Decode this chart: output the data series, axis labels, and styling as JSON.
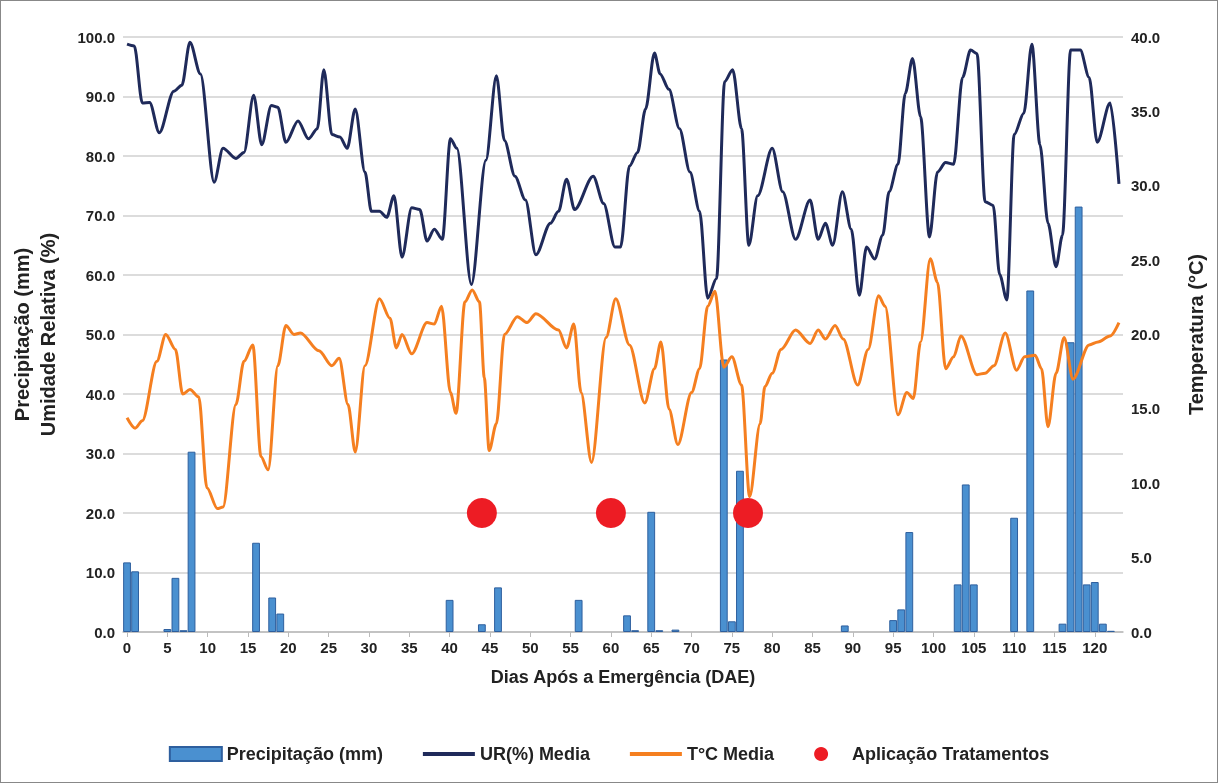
{
  "chart_data": {
    "type": "bar",
    "xlabel": "Dias Após a Emergência (DAE)",
    "ylabel": "Precipitação (mm)\nUmidade Relativa (%)",
    "y2label": "Temperatura (°C)",
    "xlim": [
      -0.5,
      123.5
    ],
    "xticks": [
      0,
      5,
      10,
      15,
      20,
      25,
      30,
      35,
      40,
      45,
      50,
      55,
      60,
      65,
      70,
      75,
      80,
      85,
      90,
      95,
      100,
      105,
      110,
      115,
      120
    ],
    "ylim": [
      0,
      100
    ],
    "yticks": [
      {
        "value": 0,
        "label": "0.0"
      },
      {
        "value": 10,
        "label": "10.0"
      },
      {
        "value": 20,
        "label": "20.0"
      },
      {
        "value": 30,
        "label": "30.0"
      },
      {
        "value": 40,
        "label": "40.0"
      },
      {
        "value": 50,
        "label": "50.0"
      },
      {
        "value": 60,
        "label": "60.0"
      },
      {
        "value": 70,
        "label": "70.0"
      },
      {
        "value": 80,
        "label": "80.0"
      },
      {
        "value": 90,
        "label": "90.0"
      },
      {
        "value": 100,
        "label": "100.0"
      }
    ],
    "y2lim": [
      0,
      40
    ],
    "y2ticks": [
      {
        "value": 0,
        "label": "0.0"
      },
      {
        "value": 5,
        "label": "5.0"
      },
      {
        "value": 10,
        "label": "10.0"
      },
      {
        "value": 15,
        "label": "15.0"
      },
      {
        "value": 20,
        "label": "20.0"
      },
      {
        "value": 25,
        "label": "25.0"
      },
      {
        "value": 30,
        "label": "30.0"
      },
      {
        "value": 35,
        "label": "35.0"
      },
      {
        "value": 40,
        "label": "40.0"
      }
    ],
    "grid": "y",
    "legend": "bottom",
    "marker": "none",
    "series": [
      {
        "name": "Precipitação (mm)",
        "color": "#4a90d0",
        "x": [
          0,
          1,
          5,
          6,
          7,
          8,
          16,
          18,
          19,
          40,
          44,
          46,
          56,
          62,
          63,
          65,
          66,
          68,
          74,
          75,
          76,
          89,
          95,
          96,
          97,
          103,
          104,
          105,
          110,
          112,
          116,
          117,
          118,
          119,
          120,
          121,
          122
        ],
        "values": [
          11.7,
          10.2,
          0.5,
          9.1,
          0.3,
          30.3,
          15.0,
          5.8,
          3.1,
          5.4,
          1.3,
          7.5,
          5.4,
          2.8,
          0.3,
          20.2,
          0.3,
          0.4,
          45.8,
          1.8,
          27.1,
          1.1,
          2.0,
          3.8,
          16.8,
          8.0,
          24.8,
          8.0,
          19.2,
          57.4,
          1.4,
          48.7,
          71.5,
          8.0,
          8.4,
          1.4,
          0.2
        ]
      },
      {
        "name": "UR(%) Media",
        "type": "line",
        "color": "#1f2a5a",
        "x": [
          0,
          0.9,
          1.9,
          2.8,
          4.0,
          5.8,
          6.8,
          7.8,
          9.1,
          10.8,
          11.9,
          13.5,
          14.5,
          15.7,
          16.7,
          17.9,
          18.7,
          19.7,
          21.2,
          22.5,
          23.6,
          24.4,
          25.4,
          26.4,
          27.3,
          28.3,
          29.5,
          30.3,
          31.3,
          32.2,
          33.1,
          34.1,
          35.3,
          36.3,
          37.2,
          38.1,
          39.1,
          40.1,
          40.9,
          42.7,
          44.5,
          45.8,
          46.8,
          48.1,
          49.4,
          50.7,
          52.5,
          53.5,
          54.5,
          55.5,
          57.8,
          59.1,
          60.5,
          61.2,
          62.3,
          63.3,
          64.3,
          65.4,
          66.1,
          67.2,
          68.5,
          69.8,
          71.0,
          72.0,
          73.1,
          74.1,
          75.1,
          76.2,
          77.1,
          78.2,
          80.0,
          81.3,
          82.9,
          84.7,
          85.7,
          86.6,
          87.5,
          88.7,
          89.8,
          90.8,
          91.7,
          92.7,
          93.7,
          94.5,
          95.6,
          96.5,
          97.4,
          98.4,
          99.5,
          100.5,
          101.5,
          102.5,
          103.6,
          104.6,
          105.4,
          106.4,
          107.4,
          108.2,
          109.1,
          110.0,
          111.2,
          112.2,
          113.2,
          114.2,
          115.2,
          116.0,
          117.0,
          118.2,
          119.3,
          120.3,
          121.9,
          123.0
        ],
        "values": [
          98.8,
          98.5,
          88.9,
          89,
          83.9,
          90.9,
          91.9,
          99.1,
          93.8,
          75.6,
          81.3,
          79.6,
          80.6,
          90.2,
          81.9,
          88.5,
          88.2,
          82.3,
          85.9,
          82.9,
          84.6,
          94.5,
          83.6,
          83.2,
          81.3,
          87.9,
          77.3,
          70.7,
          70.7,
          69.7,
          73.3,
          63,
          71.3,
          71,
          65.7,
          67.7,
          66,
          82.9,
          81.3,
          58.4,
          79.3,
          93.5,
          82.6,
          76.6,
          72.6,
          63.4,
          68.7,
          70.7,
          76.1,
          71,
          76.6,
          72,
          64.7,
          64.7,
          78.3,
          80.6,
          87.9,
          97.3,
          93.8,
          91.2,
          84.6,
          77.3,
          70.7,
          56.1,
          59.4,
          92.5,
          94.5,
          84.6,
          65,
          73.3,
          81.3,
          74,
          66,
          72.6,
          66,
          68.7,
          65,
          74,
          67.7,
          56.6,
          64.7,
          62.7,
          66.7,
          74,
          78.6,
          90.5,
          96.4,
          86.6,
          66.4,
          77.3,
          78.9,
          78.6,
          93.2,
          97.8,
          97.2,
          72.3,
          71.7,
          60.1,
          55.8,
          83.6,
          87.2,
          98.8,
          81.9,
          68.7,
          61.4,
          66.7,
          97.8,
          97.8,
          93.2,
          82.3,
          88.9,
          75.3
        ]
      },
      {
        "name": "T°C Media",
        "type": "line",
        "axis": "y2",
        "color": "#f57f20",
        "x": [
          0,
          1.0,
          1.9,
          3.7,
          4.8,
          6.0,
          6.9,
          7.8,
          8.9,
          9.9,
          11.2,
          11.9,
          13.5,
          14.5,
          15.6,
          16.6,
          17.5,
          18.7,
          19.7,
          20.7,
          21.5,
          23.8,
          25.4,
          26.3,
          27.4,
          28.3,
          29.5,
          31.3,
          32.6,
          33.4,
          34.1,
          35.3,
          37.2,
          38.1,
          39.0,
          40.1,
          40.8,
          41.9,
          42.8,
          43.7,
          44.3,
          44.9,
          45.8,
          46.8,
          48.4,
          49.6,
          50.7,
          53.5,
          54.5,
          55.4,
          56.3,
          57.6,
          59.4,
          60.6,
          62.3,
          64.2,
          65.4,
          66.2,
          67.2,
          68.3,
          70.0,
          71.0,
          72.0,
          72.9,
          74.0,
          75.0,
          76.2,
          77.2,
          78.5,
          79.1,
          80.0,
          81.1,
          82.9,
          84.7,
          85.7,
          86.6,
          87.8,
          88.8,
          90.6,
          91.9,
          93.2,
          94.0,
          95.6,
          96.7,
          97.5,
          98.4,
          99.6,
          100.5,
          101.5,
          102.5,
          103.4,
          105.4,
          106.4,
          107.5,
          108.9,
          110.3,
          111.3,
          112.6,
          113.4,
          114.2,
          115.2,
          116.2,
          117.3,
          119.3,
          120.4,
          121.9,
          123.0
        ],
        "values": [
          14.4,
          13.7,
          14.2,
          18.2,
          20.0,
          19.0,
          16.0,
          16.3,
          15.8,
          9.7,
          8.3,
          8.4,
          15.3,
          18.2,
          19.3,
          11.8,
          10.9,
          17.9,
          20.6,
          20.0,
          20.1,
          18.9,
          17.9,
          18.4,
          15.3,
          12.1,
          17.9,
          22.4,
          21.1,
          19.1,
          20.0,
          18.7,
          20.8,
          20.7,
          21.9,
          16.1,
          14.7,
          22.2,
          23.0,
          22.2,
          17.1,
          12.2,
          14.0,
          20.0,
          21.2,
          20.8,
          21.4,
          20.3,
          19.1,
          20.7,
          16.1,
          11.4,
          19.8,
          22.4,
          19.3,
          15.4,
          17.7,
          19.5,
          15.0,
          12.6,
          16.1,
          17.7,
          21.9,
          22.9,
          17.8,
          18.5,
          16.6,
          9.1,
          14.0,
          16.5,
          17.4,
          19.0,
          20.3,
          19.4,
          20.3,
          19.7,
          20.6,
          19.7,
          16.6,
          19.0,
          22.6,
          21.9,
          14.6,
          16.1,
          15.7,
          19.5,
          25.1,
          23.5,
          17.7,
          18.5,
          19.9,
          17.3,
          17.4,
          17.9,
          20.1,
          17.6,
          18.5,
          18.6,
          17.7,
          13.8,
          17.4,
          19.8,
          17.0,
          19.3,
          19.5,
          19.9,
          20.8
        ]
      },
      {
        "name": "Aplicação Tratamentos",
        "type": "scatter",
        "marker": "circle",
        "color": "#ed1c24",
        "x": [
          44,
          60,
          77
        ],
        "values": [
          20,
          20,
          20
        ]
      }
    ]
  }
}
